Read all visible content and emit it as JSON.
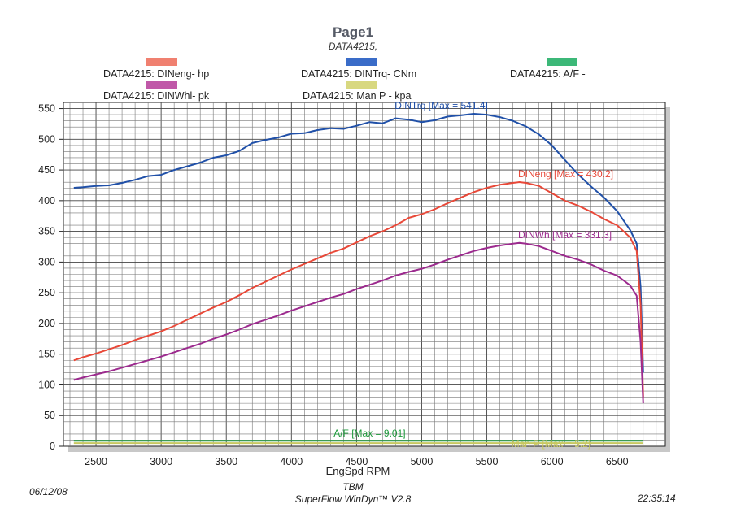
{
  "page": {
    "title": "Page1",
    "subtitle": "DATA4215,"
  },
  "legend": [
    {
      "label": "DATA4215: DINeng-  hp",
      "color": "#f08070"
    },
    {
      "label": "DATA4215: DINTrq- CNm",
      "color": "#3a6cc8"
    },
    {
      "label": "DATA4215:  A/F  -",
      "color": "#3cb878"
    },
    {
      "label": "DATA4215: DINWhl-  pk",
      "color": "#c058a8"
    },
    {
      "label": "DATA4215: Man P - kpa",
      "color": "#d8d880"
    }
  ],
  "footer": {
    "date": "06/12/08",
    "tag": "TBM",
    "software": "SuperFlow WinDyn™ V2.8",
    "time": "22:35:14"
  },
  "chart_data": {
    "type": "line",
    "xlabel": "EngSpd  RPM",
    "ylabel": "",
    "xlim": [
      2250,
      6870
    ],
    "ylim": [
      0,
      560
    ],
    "xticks": [
      2500,
      3000,
      3500,
      4000,
      4500,
      5000,
      5500,
      6000,
      6500
    ],
    "yticks": [
      0,
      50,
      100,
      150,
      200,
      250,
      300,
      350,
      400,
      450,
      500,
      550
    ],
    "grid": true,
    "series": [
      {
        "name": "DINTrq",
        "color": "#2050a8",
        "annotation": "DINTrq [Max = 541.4]",
        "x": [
          2330,
          2400,
          2500,
          2600,
          2700,
          2800,
          2900,
          3000,
          3100,
          3200,
          3300,
          3400,
          3500,
          3600,
          3700,
          3800,
          3900,
          4000,
          4100,
          4200,
          4300,
          4400,
          4500,
          4600,
          4700,
          4800,
          4900,
          5000,
          5100,
          5200,
          5300,
          5400,
          5500,
          5600,
          5700,
          5800,
          5900,
          6000,
          6100,
          6200,
          6300,
          6400,
          6500,
          6600,
          6650,
          6680,
          6700
        ],
        "y": [
          421,
          422,
          424,
          425,
          429,
          434,
          440,
          442,
          450,
          456,
          462,
          470,
          474,
          481,
          494,
          499,
          503,
          509,
          510,
          515,
          518,
          517,
          522,
          528,
          526,
          534,
          532,
          528,
          531,
          537,
          539,
          541.4,
          540,
          536,
          530,
          521,
          508,
          490,
          466,
          443,
          423,
          405,
          383,
          352,
          330,
          260,
          120
        ]
      },
      {
        "name": "DINeng",
        "color": "#e84838",
        "annotation": "DINeng [Max = 430.2]",
        "x": [
          2330,
          2400,
          2500,
          2600,
          2700,
          2800,
          2900,
          3000,
          3100,
          3200,
          3300,
          3400,
          3500,
          3600,
          3700,
          3800,
          3900,
          4000,
          4100,
          4200,
          4300,
          4400,
          4500,
          4600,
          4700,
          4800,
          4900,
          5000,
          5100,
          5200,
          5300,
          5400,
          5500,
          5600,
          5700,
          5750,
          5800,
          5900,
          6000,
          6100,
          6200,
          6300,
          6400,
          6500,
          6600,
          6650,
          6680,
          6700
        ],
        "y": [
          140,
          145,
          151,
          158,
          165,
          173,
          180,
          187,
          196,
          206,
          216,
          226,
          235,
          246,
          258,
          268,
          278,
          288,
          297,
          306,
          315,
          322,
          332,
          342,
          350,
          360,
          372,
          378,
          386,
          396,
          405,
          414,
          421,
          426,
          429,
          430.2,
          429,
          424,
          412,
          400,
          392,
          382,
          370,
          360,
          340,
          318,
          230,
          80
        ]
      },
      {
        "name": "DINWh",
        "color": "#9c2a8e",
        "annotation": "DINWh  [Max = 331.3]",
        "x": [
          2330,
          2400,
          2500,
          2600,
          2700,
          2800,
          2900,
          3000,
          3100,
          3200,
          3300,
          3400,
          3500,
          3600,
          3700,
          3800,
          3900,
          4000,
          4100,
          4200,
          4300,
          4400,
          4500,
          4600,
          4700,
          4800,
          4900,
          5000,
          5100,
          5200,
          5300,
          5400,
          5500,
          5600,
          5700,
          5750,
          5800,
          5900,
          6000,
          6100,
          6200,
          6300,
          6400,
          6500,
          6600,
          6650,
          6680,
          6700
        ],
        "y": [
          108,
          112,
          117,
          122,
          128,
          134,
          140,
          146,
          153,
          160,
          167,
          175,
          182,
          190,
          199,
          206,
          213,
          221,
          228,
          235,
          242,
          248,
          256,
          263,
          270,
          278,
          284,
          289,
          296,
          304,
          311,
          318,
          323,
          327,
          330,
          331.3,
          330,
          326,
          318,
          310,
          304,
          296,
          286,
          278,
          262,
          245,
          170,
          70
        ]
      },
      {
        "name": "A/F",
        "color": "#1e9a3c",
        "annotation": "A/F   [Max = 9.01]",
        "x": [
          2330,
          6700
        ],
        "y": [
          9.01,
          9.01
        ]
      },
      {
        "name": "Man P",
        "color": "#c8c860",
        "annotation": "Man P  [Max = 5.2]",
        "x": [
          2330,
          6700
        ],
        "y": [
          5.2,
          5.2
        ]
      }
    ]
  }
}
